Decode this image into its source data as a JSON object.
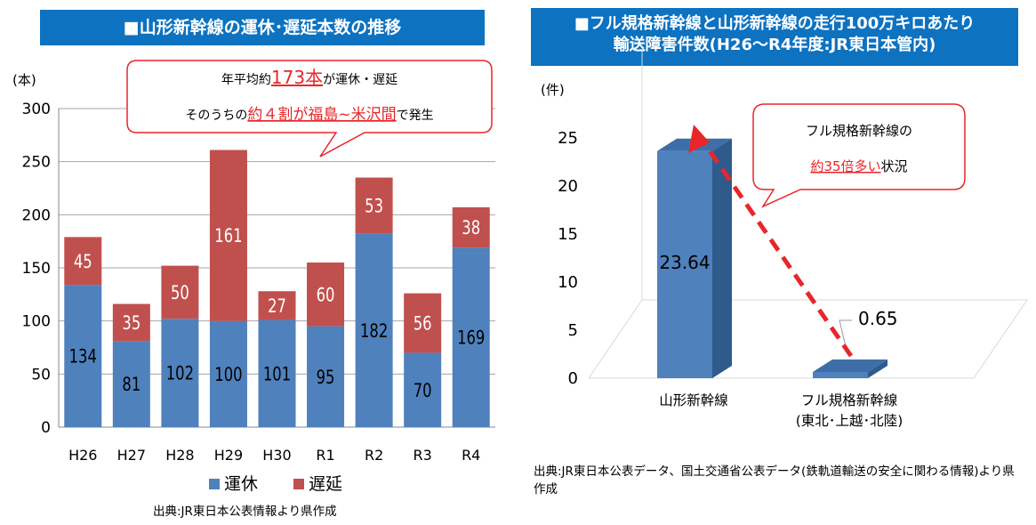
{
  "left_panel": {
    "title": "■山形新幹線の運休･遅延本数の推移",
    "y_unit": "(本)",
    "callout_prefix1": "年平均約",
    "callout_highlight1": "173本",
    "callout_suffix1": "が運休・遅延",
    "callout_prefix2": "そのうちの",
    "callout_highlight2": "約４割が福島~米沢間",
    "callout_suffix2": "で発生",
    "source": "出典:JR東日本公表情報より県作成"
  },
  "right_panel": {
    "title_line1": "■フル規格新幹線と山形新幹線の走行100万キロあたり",
    "title_line2": "輸送障害件数(H26～R4年度:JR東日本管内)",
    "y_unit": "(件)",
    "callout_line1": "フル規格新幹線の",
    "callout_highlight": "約35倍多い",
    "callout_suffix": "状況",
    "source": "出典:JR東日本公表データ、国土交通省公表データ(鉄軌道輸送の安全に関わる情報)より県作成"
  },
  "colors": {
    "blue": "#4f81bd",
    "red": "#c0504d",
    "title_bg": "#0d72c0",
    "highlight": "#e8262a"
  },
  "chart_data": [
    {
      "type": "bar",
      "stacked": true,
      "categories": [
        "H26",
        "H27",
        "H28",
        "H29",
        "H30",
        "R1",
        "R2",
        "R3",
        "R4"
      ],
      "series": [
        {
          "name": "運休",
          "values": [
            134,
            81,
            102,
            100,
            101,
            95,
            182,
            70,
            169
          ]
        },
        {
          "name": "遅延",
          "values": [
            45,
            35,
            50,
            161,
            27,
            60,
            53,
            56,
            38
          ]
        }
      ],
      "ylim": [
        0,
        300
      ],
      "yticks": [
        "0",
        "50",
        "100",
        "150",
        "200",
        "250",
        "300"
      ],
      "grid": true,
      "legend": "bottom"
    },
    {
      "type": "bar",
      "style": "3d",
      "categories": [
        "山形新幹線",
        "フル規格新幹線\n(東北･上越･北陸)"
      ],
      "values": [
        23.64,
        0.65
      ],
      "value_labels": [
        "23.64",
        "0.65"
      ],
      "ylim": [
        0,
        25
      ],
      "yticks": [
        "0",
        "5",
        "10",
        "15",
        "20",
        "25"
      ],
      "grid": false
    }
  ]
}
